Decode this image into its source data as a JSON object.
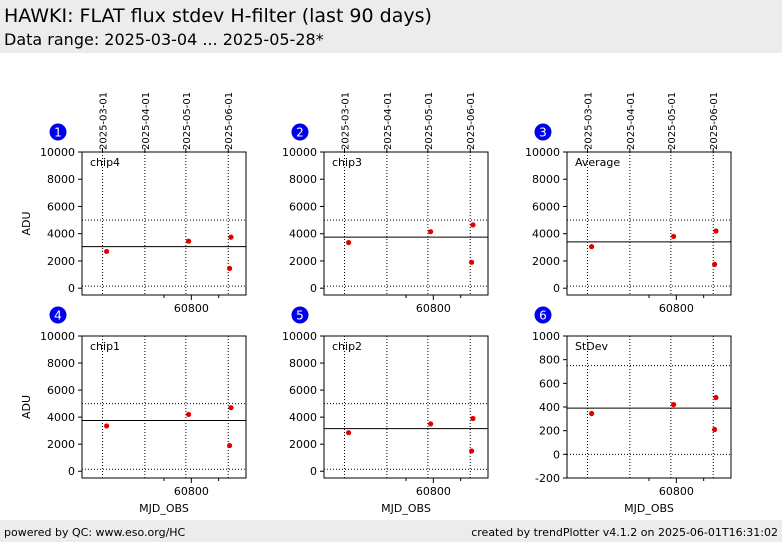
{
  "header": {
    "title": "HAWKI: FLAT flux stdev H-filter (last 90 days)",
    "subtitle": "Data range: 2025-03-04 ... 2025-05-28*"
  },
  "footer": {
    "left": "powered by QC: www.eso.org/HC",
    "right": "created by trendPlotter v4.1.2 on 2025-06-01T16:31:02"
  },
  "colors": {
    "points": "#e00000",
    "badge": "#0000ee",
    "background": "#ececec"
  },
  "chart_data": [
    {
      "type": "scatter",
      "index": "1",
      "label": "chip4",
      "x": [
        60738,
        60798,
        60828,
        60829
      ],
      "y": [
        2700,
        3450,
        1450,
        3750
      ],
      "xticks": [
        60800
      ],
      "xlabel": "",
      "ylabel": "ADU",
      "ylim": [
        -500,
        10000
      ],
      "yticks": [
        0,
        2000,
        4000,
        6000,
        8000,
        10000
      ],
      "hlines": {
        "solid": 3050,
        "dotted": [
          5000,
          150
        ]
      },
      "date_ticks": [
        "2025-03-01",
        "2025-04-01",
        "2025-05-01",
        "2025-06-01"
      ]
    },
    {
      "type": "scatter",
      "index": "2",
      "label": "chip3",
      "x": [
        60738,
        60798,
        60828,
        60829
      ],
      "y": [
        3350,
        4150,
        1900,
        4650
      ],
      "xticks": [
        60800
      ],
      "xlabel": "",
      "ylabel": "",
      "ylim": [
        -500,
        10000
      ],
      "yticks": [
        0,
        2000,
        4000,
        6000,
        8000,
        10000
      ],
      "hlines": {
        "solid": 3750,
        "dotted": [
          5000,
          150
        ]
      },
      "date_ticks": [
        "2025-03-01",
        "2025-04-01",
        "2025-05-01",
        "2025-06-01"
      ]
    },
    {
      "type": "scatter",
      "index": "3",
      "label": "Average",
      "x": [
        60738,
        60798,
        60828,
        60829
      ],
      "y": [
        3050,
        3800,
        1750,
        4200
      ],
      "xticks": [
        60800
      ],
      "xlabel": "",
      "ylabel": "",
      "ylim": [
        -500,
        10000
      ],
      "yticks": [
        0,
        2000,
        4000,
        6000,
        8000,
        10000
      ],
      "hlines": {
        "solid": 3400,
        "dotted": [
          5000,
          150
        ]
      },
      "date_ticks": [
        "2025-03-01",
        "2025-04-01",
        "2025-05-01",
        "2025-06-01"
      ]
    },
    {
      "type": "scatter",
      "index": "4",
      "label": "chip1",
      "x": [
        60738,
        60798,
        60828,
        60829
      ],
      "y": [
        3350,
        4200,
        1900,
        4700
      ],
      "xticks": [
        60800
      ],
      "xlabel": "MJD_OBS",
      "ylabel": "ADU",
      "ylim": [
        -500,
        10000
      ],
      "yticks": [
        0,
        2000,
        4000,
        6000,
        8000,
        10000
      ],
      "hlines": {
        "solid": 3750,
        "dotted": [
          5000,
          150
        ]
      }
    },
    {
      "type": "scatter",
      "index": "5",
      "label": "chip2",
      "x": [
        60738,
        60798,
        60828,
        60829
      ],
      "y": [
        2850,
        3500,
        1500,
        3900
      ],
      "xticks": [
        60800
      ],
      "xlabel": "MJD_OBS",
      "ylabel": "",
      "ylim": [
        -500,
        10000
      ],
      "yticks": [
        0,
        2000,
        4000,
        6000,
        8000,
        10000
      ],
      "hlines": {
        "solid": 3150,
        "dotted": [
          5000,
          150
        ]
      }
    },
    {
      "type": "scatter",
      "index": "6",
      "label": "StDev",
      "x": [
        60738,
        60798,
        60828,
        60829
      ],
      "y": [
        345,
        420,
        210,
        480
      ],
      "xticks": [
        60800
      ],
      "xlabel": "MJD_OBS",
      "ylabel": "",
      "ylim": [
        -200,
        1000
      ],
      "yticks": [
        -200,
        0,
        200,
        400,
        600,
        800,
        1000
      ],
      "hlines": {
        "solid": 390,
        "dotted": [
          750,
          0
        ]
      }
    }
  ]
}
